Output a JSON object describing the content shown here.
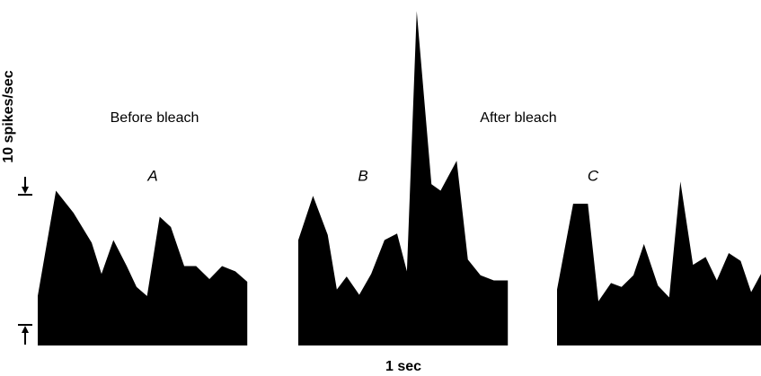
{
  "labels": {
    "before": "Before bleach",
    "after": "After bleach"
  },
  "y_scale_bar": {
    "value": 10,
    "label": "10 spikes/sec"
  },
  "x_scale_bar": {
    "value": 1,
    "label": "1 sec"
  },
  "chart_data": [
    {
      "type": "area",
      "title": "A",
      "color": "#000000",
      "x": [
        0,
        0.26,
        0.51,
        0.77,
        0.91,
        1.08,
        1.27,
        1.41,
        1.56,
        1.74,
        1.9,
        2.09,
        2.26,
        2.45,
        2.63,
        2.82,
        2.99
      ],
      "values": [
        3.8,
        11.9,
        10.2,
        7.9,
        5.5,
        8.1,
        6.1,
        4.5,
        3.8,
        9.9,
        9.1,
        6.1,
        6.1,
        5.1,
        6.1,
        5.7,
        4.9
      ]
    },
    {
      "type": "area",
      "title": "B",
      "color": "#000000",
      "x": [
        0,
        0.21,
        0.42,
        0.55,
        0.69,
        0.87,
        1.04,
        1.23,
        1.41,
        1.55,
        1.69,
        1.9,
        2.03,
        2.26,
        2.42,
        2.6,
        2.79,
        2.99
      ],
      "values": [
        8.1,
        11.5,
        8.5,
        4.3,
        5.3,
        3.9,
        5.5,
        8.1,
        8.6,
        5.7,
        25.7,
        12.4,
        11.9,
        14.2,
        6.6,
        5.4,
        5.0,
        5.0
      ]
    },
    {
      "type": "area",
      "title": "C",
      "color": "#000000",
      "x": [
        0,
        0.23,
        0.44,
        0.59,
        0.77,
        0.92,
        1.09,
        1.24,
        1.44,
        1.6,
        1.76,
        1.94,
        2.12,
        2.28,
        2.45,
        2.62,
        2.77,
        2.91
      ],
      "values": [
        4.3,
        10.9,
        10.9,
        3.4,
        4.8,
        4.5,
        5.4,
        7.8,
        4.6,
        3.7,
        12.6,
        6.2,
        6.8,
        5.0,
        7.1,
        6.5,
        4.1,
        5.5
      ]
    }
  ]
}
